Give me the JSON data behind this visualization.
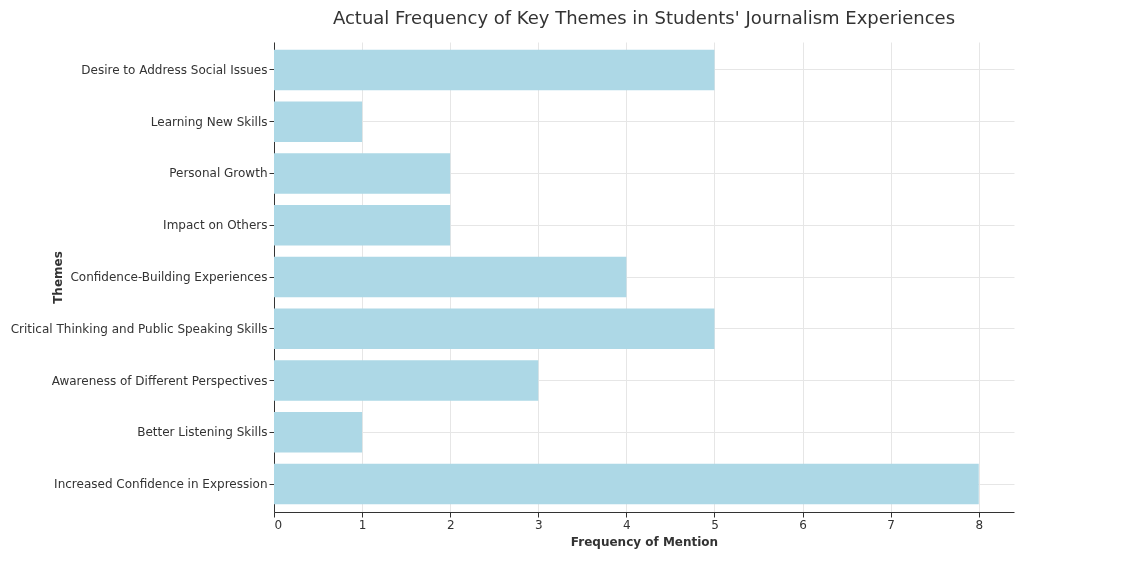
{
  "chart_data": {
    "type": "bar",
    "orientation": "horizontal",
    "title": "Actual Frequency of Key Themes in Students' Journalism Experiences",
    "xlabel": "Frequency of Mention",
    "ylabel": "Themes",
    "categories": [
      "Desire to Address Social Issues",
      "Learning New Skills",
      "Personal Growth",
      "Impact on Others",
      "Confidence-Building Experiences",
      "Critical Thinking and Public Speaking Skills",
      "Awareness of Different Perspectives",
      "Better Listening Skills",
      "Increased Confidence in Expression"
    ],
    "values": [
      5,
      1,
      2,
      2,
      4,
      5,
      3,
      1,
      8
    ],
    "color": "#add8e6",
    "xlim": [
      0,
      8.4
    ],
    "xticks": [
      0,
      1,
      2,
      3,
      4,
      5,
      6,
      7,
      8
    ],
    "grid": true
  }
}
